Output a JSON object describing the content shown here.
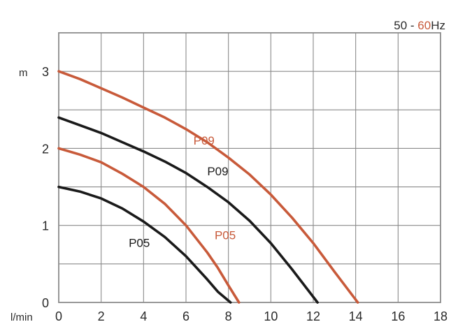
{
  "chart_data": {
    "type": "line",
    "title_parts": {
      "a": "50",
      "sep": " - ",
      "b": "60",
      "unit": "Hz"
    },
    "xlabel": "l/min",
    "ylabel": "m",
    "xlim": [
      0,
      18
    ],
    "ylim": [
      0,
      3.5
    ],
    "xticks": [
      0,
      2,
      4,
      6,
      8,
      10,
      12,
      14,
      16,
      18
    ],
    "yticks": [
      0,
      1,
      2,
      3
    ],
    "grid": true,
    "series": [
      {
        "label": "P05",
        "freq": "50Hz",
        "color": "#1a1a1a",
        "x": [
          0,
          1,
          2,
          3,
          4,
          5,
          6,
          7,
          7.5,
          8.1
        ],
        "y": [
          1.5,
          1.44,
          1.35,
          1.22,
          1.05,
          0.85,
          0.6,
          0.3,
          0.14,
          0
        ]
      },
      {
        "label": "P05",
        "freq": "60Hz",
        "color": "#c85a3a",
        "x": [
          0,
          1,
          2,
          3,
          4,
          5,
          6,
          7,
          7.5,
          8,
          8.5
        ],
        "y": [
          2.0,
          1.92,
          1.82,
          1.67,
          1.5,
          1.28,
          1.0,
          0.65,
          0.45,
          0.22,
          0
        ]
      },
      {
        "label": "P09",
        "freq": "50Hz",
        "color": "#1a1a1a",
        "x": [
          0,
          1,
          2,
          3,
          4,
          5,
          6,
          7,
          8,
          9,
          10,
          11,
          12.2
        ],
        "y": [
          2.4,
          2.3,
          2.2,
          2.08,
          1.96,
          1.83,
          1.68,
          1.5,
          1.3,
          1.06,
          0.77,
          0.43,
          0
        ]
      },
      {
        "label": "P09",
        "freq": "60Hz",
        "color": "#c85a3a",
        "x": [
          0,
          1,
          2,
          3,
          4,
          5,
          6,
          7,
          8,
          9,
          10,
          11,
          12,
          13,
          14.1
        ],
        "y": [
          3.0,
          2.9,
          2.78,
          2.66,
          2.53,
          2.4,
          2.25,
          2.08,
          1.88,
          1.66,
          1.4,
          1.1,
          0.77,
          0.4,
          0
        ]
      }
    ],
    "annotations": [
      {
        "text": "P09",
        "series": 3,
        "x": 6.35,
        "y": 2.05,
        "color": "#c85a3a"
      },
      {
        "text": "P09",
        "series": 2,
        "x": 7.0,
        "y": 1.65,
        "color": "#1a1a1a"
      },
      {
        "text": "P05",
        "series": 1,
        "x": 7.35,
        "y": 0.82,
        "color": "#c85a3a"
      },
      {
        "text": "P05",
        "series": 0,
        "x": 3.3,
        "y": 0.72,
        "color": "#1a1a1a"
      }
    ]
  }
}
